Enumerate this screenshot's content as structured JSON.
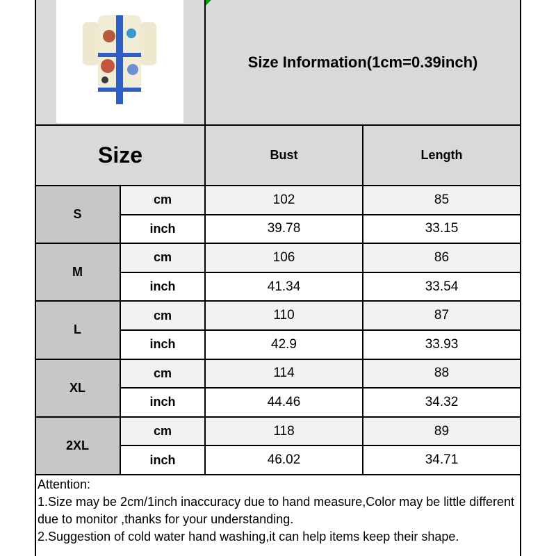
{
  "title": "Size Information(1cm=0.39inch)",
  "header": {
    "size": "Size",
    "bust": "Bust",
    "length": "Length"
  },
  "product_image": {
    "description_icon": "shirt-dress-product-photo"
  },
  "colors": {
    "header_gray": "#d9d9d9",
    "size_cell_gray": "#c9c6c7",
    "cm_row": "#f2f2f2",
    "marker_green": "#00a000"
  },
  "rows": [
    {
      "size": "S",
      "cm": {
        "unit": "cm",
        "bust": "102",
        "length": "85"
      },
      "inch": {
        "unit": "inch",
        "bust": "39.78",
        "length": "33.15"
      }
    },
    {
      "size": "M",
      "cm": {
        "unit": "cm",
        "bust": "106",
        "length": "86"
      },
      "inch": {
        "unit": "inch",
        "bust": "41.34",
        "length": "33.54"
      }
    },
    {
      "size": "L",
      "cm": {
        "unit": "cm",
        "bust": "110",
        "length": "87"
      },
      "inch": {
        "unit": "inch",
        "bust": "42.9",
        "length": "33.93"
      }
    },
    {
      "size": "XL",
      "cm": {
        "unit": "cm",
        "bust": "114",
        "length": "88"
      },
      "inch": {
        "unit": "inch",
        "bust": "44.46",
        "length": "34.32"
      }
    },
    {
      "size": "2XL",
      "cm": {
        "unit": "cm",
        "bust": "118",
        "length": "89"
      },
      "inch": {
        "unit": "inch",
        "bust": "46.02",
        "length": "34.71"
      }
    }
  ],
  "attention": {
    "heading": "Attention:",
    "line1": "1.Size may be 2cm/1inch inaccuracy due to hand measure,Color may be little different due to monitor ,thanks for your understanding.",
    "line2": "2.Suggestion of cold water hand washing,it can help items keep their shape."
  }
}
